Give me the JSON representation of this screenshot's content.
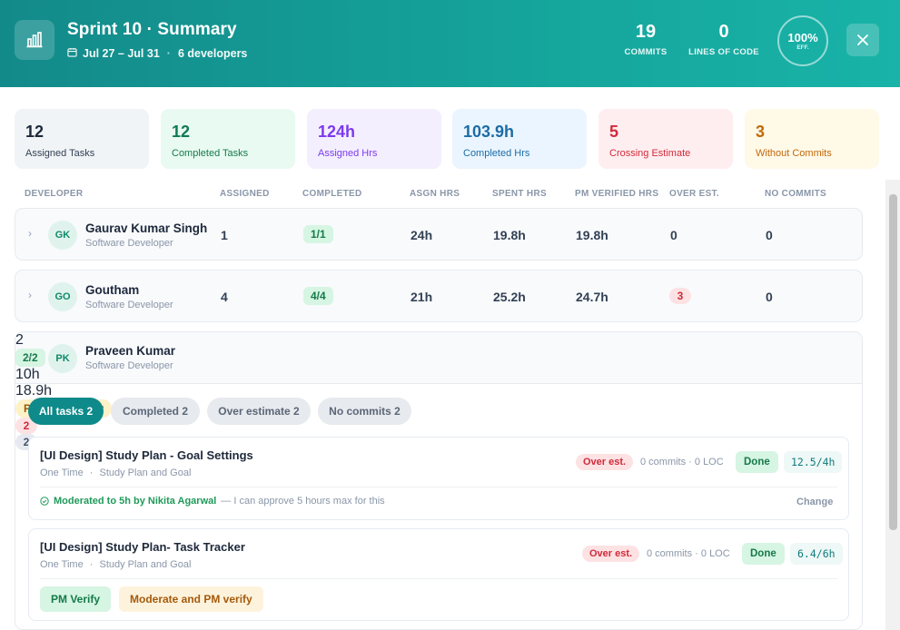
{
  "header": {
    "title": "Sprint 10 · Summary",
    "date_range": "Jul 27 – Jul 31",
    "separator": "·",
    "developers": "6 developers",
    "commits": {
      "value": "19",
      "label": "COMMITS"
    },
    "loc": {
      "value": "0",
      "label": "LINES OF CODE"
    },
    "efficiency": {
      "value": "100%",
      "label": "EFF."
    },
    "icon": "bar-chart-icon",
    "close_icon": "close-icon"
  },
  "summary": [
    {
      "value": "12",
      "label": "Assigned Tasks",
      "bg": "#f1f4f6",
      "color": "#1e293b",
      "lcolor": "#334155"
    },
    {
      "value": "12",
      "label": "Completed Tasks",
      "bg": "#e8faf1",
      "color": "#0f7a55",
      "lcolor": "#167a4a"
    },
    {
      "value": "124h",
      "label": "Assigned Hrs",
      "bg": "#f4efff",
      "color": "#7c3aed",
      "lcolor": "#7c3aed"
    },
    {
      "value": "103.9h",
      "label": "Completed Hrs",
      "bg": "#eaf5ff",
      "color": "#1c6ca6",
      "lcolor": "#1c6ca6"
    },
    {
      "value": "5",
      "label": "Crossing Estimate",
      "bg": "#ffeef0",
      "color": "#d02a3a",
      "lcolor": "#d02a3a"
    },
    {
      "value": "3",
      "label": "Without Commits",
      "bg": "#fff9e8",
      "color": "#c2680a",
      "lcolor": "#c2680a"
    }
  ],
  "table": {
    "columns": [
      "DEVELOPER",
      "ASSIGNED",
      "COMPLETED",
      "ASGN HRS",
      "SPENT HRS",
      "PM VERIFIED HRS",
      "OVER EST.",
      "NO COMMITS"
    ],
    "rows": [
      {
        "initials": "GK",
        "name": "Gaurav Kumar Singh",
        "role": "Software Developer",
        "assigned": "1",
        "completed": "1/1",
        "asgn_hrs": "24h",
        "spent_hrs": "19.8h",
        "pm_verified": "19.8h",
        "over_est": "0",
        "no_commits": "0",
        "expanded": false
      },
      {
        "initials": "GO",
        "name": "Goutham",
        "role": "Software Developer",
        "assigned": "4",
        "completed": "4/4",
        "asgn_hrs": "21h",
        "spent_hrs": "25.2h",
        "pm_verified": "24.7h",
        "over_est": "3",
        "no_commits": "0",
        "expanded": false
      },
      {
        "initials": "PK",
        "name": "Praveen Kumar",
        "role": "Software Developer",
        "assigned": "2",
        "completed": "2/2",
        "asgn_hrs": "10h",
        "spent_hrs": "18.9h",
        "pm_verified": "Pending review",
        "over_est": "2",
        "no_commits": "2",
        "expanded": true
      }
    ]
  },
  "filters": [
    {
      "label": "All tasks 2",
      "active": true
    },
    {
      "label": "Completed 2",
      "active": false
    },
    {
      "label": "Over estimate 2",
      "active": false
    },
    {
      "label": "No commits 2",
      "active": false
    }
  ],
  "tasks": [
    {
      "title": "[UI Design] Study Plan - Goal Settings",
      "type": "One Time",
      "project": "Study Plan and Goal",
      "tag": "Over est.",
      "commits": "0 commits · 0 LOC",
      "status": "Done",
      "hours": "12.5/4h",
      "moderated": "Moderated to 5h by Nikita Agarwal",
      "note": "— I can approve 5 hours max for this",
      "change_label": "Change"
    },
    {
      "title": "[UI Design] Study Plan- Task Tracker",
      "type": "One Time",
      "project": "Study Plan and Goal",
      "tag": "Over est.",
      "commits": "0 commits · 0 LOC",
      "status": "Done",
      "hours": "6.4/6h",
      "pm_verify_label": "PM Verify",
      "moderate_label": "Moderate and PM verify"
    }
  ]
}
